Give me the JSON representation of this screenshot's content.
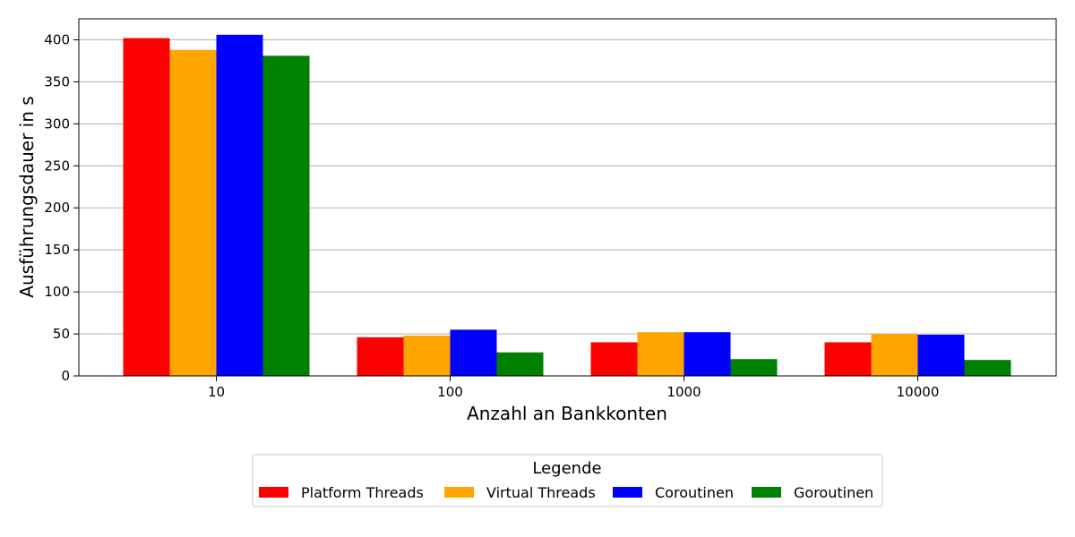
{
  "chart_data": {
    "type": "bar",
    "title": "",
    "xlabel": "Anzahl an Bankkonten",
    "ylabel": "Ausführungsdauer in s",
    "categories": [
      "10",
      "100",
      "1000",
      "10000"
    ],
    "ylim": [
      0,
      425
    ],
    "yticks": [
      0,
      50,
      100,
      150,
      200,
      250,
      300,
      350,
      400
    ],
    "grid": "y",
    "legend": {
      "title": "Legende",
      "placement": "bottom-center"
    },
    "series": [
      {
        "name": "Platform Threads",
        "color": "#ff0000",
        "values": [
          402,
          46,
          40,
          40
        ]
      },
      {
        "name": "Virtual Threads",
        "color": "#ffa500",
        "values": [
          388,
          48,
          52,
          50
        ]
      },
      {
        "name": "Coroutinen",
        "color": "#0000ff",
        "values": [
          406,
          55,
          52,
          49
        ]
      },
      {
        "name": "Goroutinen",
        "color": "#008000",
        "values": [
          381,
          28,
          20,
          19
        ]
      }
    ]
  }
}
